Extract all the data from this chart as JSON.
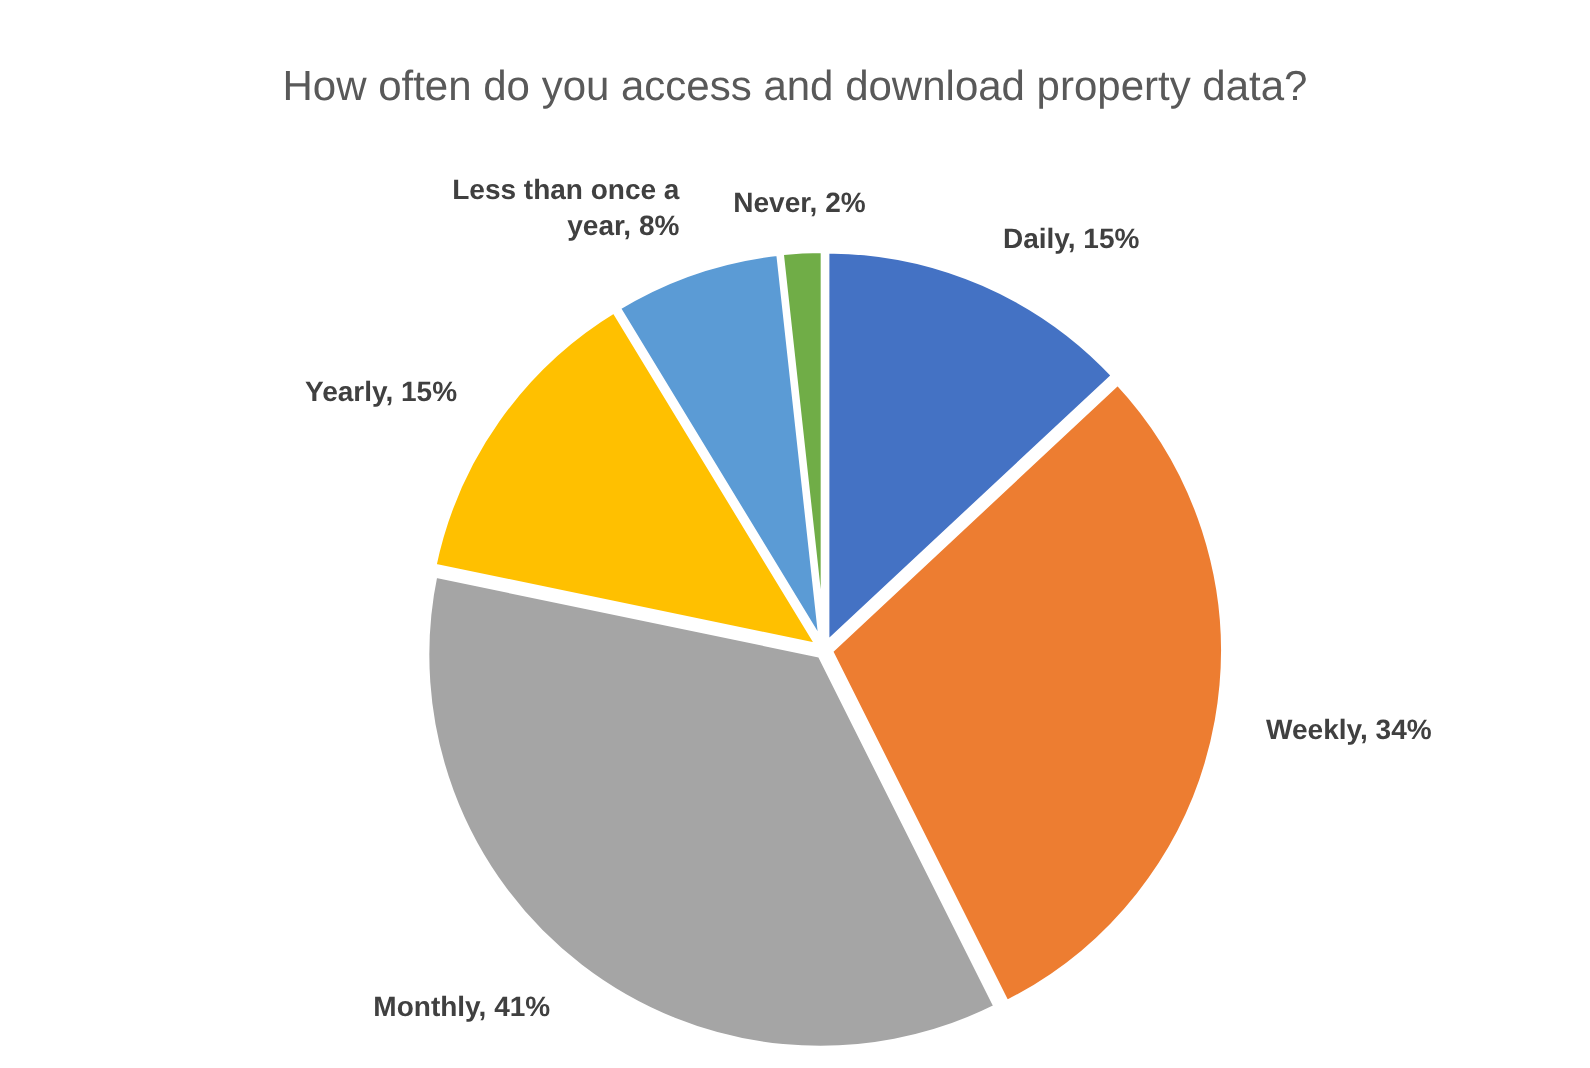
{
  "chart_data": {
    "type": "pie",
    "title": "How often do you access and download property data?",
    "categories": [
      "Daily",
      "Weekly",
      "Monthly",
      "Yearly",
      "Less than once a year",
      "Never"
    ],
    "values": [
      15,
      34,
      41,
      15,
      8,
      2
    ],
    "value_labels": [
      "15%",
      "34%",
      "41%",
      "15%",
      "8%",
      "2%"
    ],
    "colors": [
      "#4472c4",
      "#ed7d31",
      "#a5a5a5",
      "#ffc000",
      "#5b9bd5",
      "#70ad47"
    ]
  }
}
